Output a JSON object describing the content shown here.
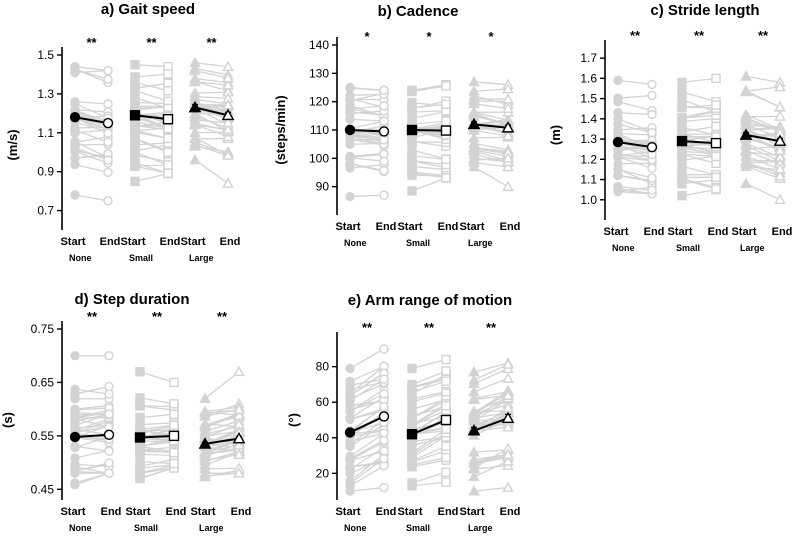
{
  "figure": {
    "group_labels": [
      "None",
      "Small",
      "Large"
    ],
    "condition_labels": [
      "Start",
      "End"
    ],
    "individual_color": "#d3d3d3",
    "mean_color": "#000000"
  },
  "chart_data": [
    {
      "type": "scatter",
      "title": "a) Gait speed",
      "ylabel": "(m/s)",
      "ylim": [
        0.6,
        1.5
      ],
      "yticks": [
        "0.7",
        "0.9",
        "1.1",
        "1.3",
        "1.5"
      ],
      "significance": [
        "**",
        "**",
        "**"
      ],
      "series": [
        {
          "name": "None",
          "marker": "circle",
          "start_mean": 1.18,
          "end_mean": 1.15,
          "start_err": 0.012,
          "end_err": 0.012,
          "start_range": [
            0.78,
            1.44
          ],
          "end_range": [
            0.75,
            1.42
          ]
        },
        {
          "name": "Small",
          "marker": "square",
          "start_mean": 1.19,
          "end_mean": 1.17,
          "start_err": 0.012,
          "end_err": 0.012,
          "start_range": [
            0.85,
            1.45
          ],
          "end_range": [
            0.89,
            1.44
          ]
        },
        {
          "name": "Large",
          "marker": "triangle",
          "start_mean": 1.23,
          "end_mean": 1.19,
          "start_err": 0.015,
          "end_err": 0.015,
          "start_range": [
            0.96,
            1.46
          ],
          "end_range": [
            0.84,
            1.44
          ]
        }
      ]
    },
    {
      "type": "scatter",
      "title": "b) Cadence",
      "ylabel": "(steps/min)",
      "ylim": [
        80,
        140
      ],
      "yticks": [
        "90",
        "100",
        "110",
        "120",
        "130",
        "140"
      ],
      "significance": [
        "*",
        "*",
        "*"
      ],
      "series": [
        {
          "name": "None",
          "marker": "circle",
          "start_mean": 110,
          "end_mean": 109.5,
          "start_err": 0.8,
          "end_err": 0.8,
          "start_range": [
            86.5,
            125
          ],
          "end_range": [
            87,
            124
          ]
        },
        {
          "name": "Small",
          "marker": "square",
          "start_mean": 110,
          "end_mean": 109.8,
          "start_err": 0.8,
          "end_err": 0.8,
          "start_range": [
            88.5,
            124
          ],
          "end_range": [
            93,
            126
          ]
        },
        {
          "name": "Large",
          "marker": "triangle",
          "start_mean": 112,
          "end_mean": 110.8,
          "start_err": 0.9,
          "end_err": 0.9,
          "start_range": [
            97,
            127
          ],
          "end_range": [
            90,
            126
          ]
        }
      ]
    },
    {
      "type": "scatter",
      "title": "c) Stride length",
      "ylabel": "(m)",
      "ylim": [
        0.9,
        1.75
      ],
      "yticks": [
        "1.0",
        "1.1",
        "1.2",
        "1.3",
        "1.4",
        "1.5",
        "1.6",
        "1.7"
      ],
      "significance": [
        "**",
        "**",
        "**"
      ],
      "series": [
        {
          "name": "None",
          "marker": "circle",
          "start_mean": 1.285,
          "end_mean": 1.26,
          "start_err": 0.01,
          "end_err": 0.01,
          "start_range": [
            1.04,
            1.59
          ],
          "end_range": [
            1.03,
            1.57
          ]
        },
        {
          "name": "Small",
          "marker": "square",
          "start_mean": 1.29,
          "end_mean": 1.28,
          "start_err": 0.01,
          "end_err": 0.01,
          "start_range": [
            1.02,
            1.58
          ],
          "end_range": [
            1.05,
            1.6
          ]
        },
        {
          "name": "Large",
          "marker": "triangle",
          "start_mean": 1.32,
          "end_mean": 1.29,
          "start_err": 0.012,
          "end_err": 0.012,
          "start_range": [
            1.08,
            1.61
          ],
          "end_range": [
            1.0,
            1.58
          ]
        }
      ]
    },
    {
      "type": "scatter",
      "title": "d) Step duration",
      "ylabel": "(s)",
      "ylim": [
        0.43,
        0.75
      ],
      "yticks": [
        "0.45",
        "0.55",
        "0.65",
        "0.75"
      ],
      "significance": [
        "**",
        "**",
        "**"
      ],
      "series": [
        {
          "name": "None",
          "marker": "circle",
          "start_mean": 0.548,
          "end_mean": 0.552,
          "start_err": 0.003,
          "end_err": 0.003,
          "start_range": [
            0.48,
            0.7
          ],
          "end_range": [
            0.48,
            0.7
          ]
        },
        {
          "name": "Small",
          "marker": "square",
          "start_mean": 0.547,
          "end_mean": 0.55,
          "start_err": 0.003,
          "end_err": 0.003,
          "start_range": [
            0.48,
            0.67
          ],
          "end_range": [
            0.49,
            0.65
          ]
        },
        {
          "name": "Large",
          "marker": "triangle",
          "start_mean": 0.535,
          "end_mean": 0.545,
          "start_err": 0.003,
          "end_err": 0.003,
          "start_range": [
            0.48,
            0.62
          ],
          "end_range": [
            0.48,
            0.67
          ]
        }
      ]
    },
    {
      "type": "scatter",
      "title": "e) Arm range of motion",
      "ylabel": "(°)",
      "ylim": [
        5,
        95
      ],
      "yticks": [
        "20",
        "40",
        "60",
        "80"
      ],
      "significance": [
        "**",
        "**",
        "**"
      ],
      "series": [
        {
          "name": "None",
          "marker": "circle",
          "start_mean": 43,
          "end_mean": 52,
          "start_err": 1.5,
          "end_err": 2.0,
          "start_range": [
            10,
            79
          ],
          "end_range": [
            12,
            90
          ]
        },
        {
          "name": "Small",
          "marker": "square",
          "start_mean": 42,
          "end_mean": 50,
          "start_err": 1.5,
          "end_err": 2.0,
          "start_range": [
            13,
            79
          ],
          "end_range": [
            15,
            84
          ]
        },
        {
          "name": "Large",
          "marker": "triangle",
          "start_mean": 44,
          "end_mean": 51,
          "start_err": 1.8,
          "end_err": 2.2,
          "start_range": [
            10,
            77
          ],
          "end_range": [
            12,
            82
          ]
        }
      ]
    }
  ]
}
